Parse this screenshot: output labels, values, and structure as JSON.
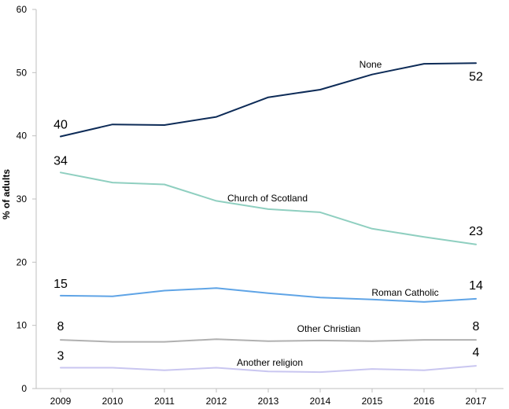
{
  "chart_data": {
    "type": "line",
    "title": "",
    "xlabel": "",
    "ylabel": "% of adults",
    "ylim": [
      0,
      60
    ],
    "yticks": [
      0,
      10,
      20,
      30,
      40,
      50,
      60
    ],
    "grid": false,
    "legend": "none (series labelled inline)",
    "x": [
      "2009",
      "2010",
      "2011",
      "2012",
      "2013",
      "2014",
      "2015",
      "2016",
      "2017"
    ],
    "series": [
      {
        "name": "None",
        "color": "#0d2b57",
        "values": [
          39.9,
          41.8,
          41.7,
          43.0,
          46.1,
          47.3,
          49.7,
          51.4,
          51.5
        ],
        "start_label": "40",
        "end_label": "52"
      },
      {
        "name": "Church of Scotland",
        "color": "#8fcfc0",
        "values": [
          34.2,
          32.6,
          32.3,
          29.7,
          28.4,
          27.9,
          25.3,
          24.0,
          22.8
        ],
        "start_label": "34",
        "end_label": "23"
      },
      {
        "name": "Roman Catholic",
        "color": "#5fa4e6",
        "values": [
          14.7,
          14.6,
          15.5,
          15.9,
          15.1,
          14.4,
          14.1,
          13.7,
          14.2
        ],
        "start_label": "15",
        "end_label": "14"
      },
      {
        "name": "Other Christian",
        "color": "#b0b0b0",
        "values": [
          7.7,
          7.4,
          7.4,
          7.8,
          7.5,
          7.6,
          7.5,
          7.7,
          7.7
        ],
        "start_label": "8",
        "end_label": "8"
      },
      {
        "name": "Another religion",
        "color": "#c9c6f0",
        "values": [
          3.3,
          3.3,
          2.9,
          3.3,
          2.7,
          2.6,
          3.1,
          2.9,
          3.6
        ],
        "start_label": "3",
        "end_label": "4"
      }
    ]
  }
}
